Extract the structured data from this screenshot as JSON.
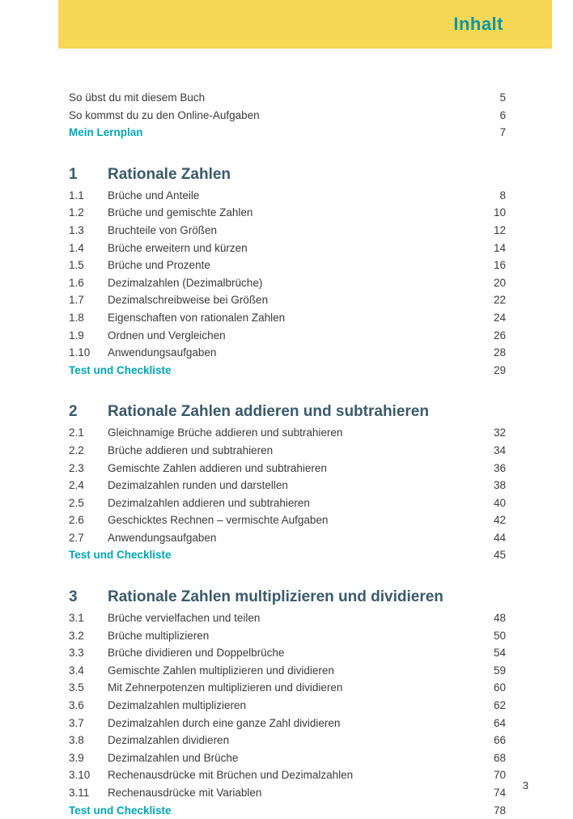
{
  "header": {
    "title": "Inhalt"
  },
  "intro": [
    {
      "label": "So übst du mit diesem Buch",
      "page": "5",
      "teal": false
    },
    {
      "label": "So kommst du zu den Online-Aufgaben",
      "page": "6",
      "teal": false
    },
    {
      "label": "Mein Lernplan",
      "page": "7",
      "teal": true
    }
  ],
  "chapters": [
    {
      "num": "1",
      "title": "Rationale Zahlen",
      "items": [
        {
          "num": "1.1",
          "label": "Brüche und Anteile",
          "page": "8"
        },
        {
          "num": "1.2",
          "label": "Brüche und gemischte Zahlen",
          "page": "10"
        },
        {
          "num": "1.3",
          "label": "Bruchteile von Größen",
          "page": "12"
        },
        {
          "num": "1.4",
          "label": "Brüche erweitern und kürzen",
          "page": "14"
        },
        {
          "num": "1.5",
          "label": "Brüche und Prozente",
          "page": "16"
        },
        {
          "num": "1.6",
          "label": "Dezimalzahlen (Dezimalbrüche)",
          "page": "20"
        },
        {
          "num": "1.7",
          "label": "Dezimalschreibweise bei Größen",
          "page": "22"
        },
        {
          "num": "1.8",
          "label": "Eigenschaften von rationalen Zahlen",
          "page": "24"
        },
        {
          "num": "1.9",
          "label": "Ordnen und Vergleichen",
          "page": "26"
        },
        {
          "num": "1.10",
          "label": "Anwendungsaufgaben",
          "page": "28"
        }
      ],
      "footer": {
        "label": "Test und Checkliste",
        "page": "29"
      }
    },
    {
      "num": "2",
      "title": "Rationale Zahlen addieren und subtrahieren",
      "items": [
        {
          "num": "2.1",
          "label": "Gleichnamige Brüche addieren und subtrahieren",
          "page": "32"
        },
        {
          "num": "2.2",
          "label": "Brüche addieren und subtrahieren",
          "page": "34"
        },
        {
          "num": "2.3",
          "label": "Gemischte Zahlen addieren und subtrahieren",
          "page": "36"
        },
        {
          "num": "2.4",
          "label": "Dezimalzahlen runden und darstellen",
          "page": "38"
        },
        {
          "num": "2.5",
          "label": "Dezimalzahlen addieren und subtrahieren",
          "page": "40"
        },
        {
          "num": "2.6",
          "label": "Geschicktes Rechnen – vermischte Aufgaben",
          "page": "42"
        },
        {
          "num": "2.7",
          "label": "Anwendungsaufgaben",
          "page": "44"
        }
      ],
      "footer": {
        "label": "Test und Checkliste",
        "page": "45"
      }
    },
    {
      "num": "3",
      "title": "Rationale Zahlen multiplizieren und dividieren",
      "items": [
        {
          "num": "3.1",
          "label": "Brüche vervielfachen und teilen",
          "page": "48"
        },
        {
          "num": "3.2",
          "label": "Brüche multiplizieren",
          "page": "50"
        },
        {
          "num": "3.3",
          "label": "Brüche dividieren und Doppelbrüche",
          "page": "54"
        },
        {
          "num": "3.4",
          "label": "Gemischte Zahlen multiplizieren und dividieren",
          "page": "59"
        },
        {
          "num": "3.5",
          "label": "Mit Zehnerpotenzen multiplizieren und dividieren",
          "page": "60"
        },
        {
          "num": "3.6",
          "label": "Dezimalzahlen multiplizieren",
          "page": "62"
        },
        {
          "num": "3.7",
          "label": "Dezimalzahlen durch eine ganze Zahl dividieren",
          "page": "64"
        },
        {
          "num": "3.8",
          "label": "Dezimalzahlen dividieren",
          "page": "66"
        },
        {
          "num": "3.9",
          "label": "Dezimalzahlen und Brüche",
          "page": "68"
        },
        {
          "num": "3.10",
          "label": "Rechenausdrücke mit Brüchen und Dezimalzahlen",
          "page": "70"
        },
        {
          "num": "3.11",
          "label": "Rechenausdrücke mit Variablen",
          "page": "74"
        }
      ],
      "footer": {
        "label": "Test und Checkliste",
        "page": "78"
      }
    }
  ],
  "pageNumber": "3",
  "colors": {
    "banner_bg": "#f6d756",
    "teal": "#00a6b4",
    "header_teal": "#0097a7",
    "chapter_color": "#3a5a6a",
    "text": "#3a3a3a"
  }
}
